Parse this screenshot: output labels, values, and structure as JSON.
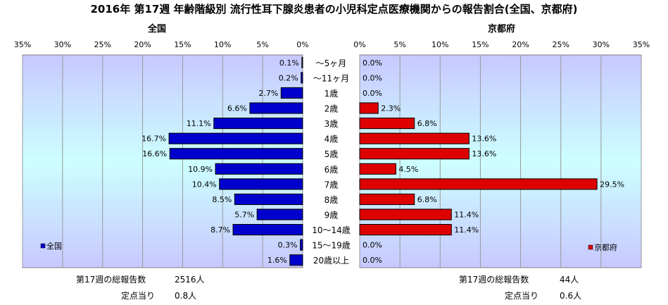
{
  "title": "2016年 第17週 年齢階級別 流行性耳下腺炎患者の小児科定点医療機関からの報告割合(全国、京都府)",
  "colors": {
    "national": "#0000cc",
    "kyoto": "#dd0000",
    "plot_gradient_top": "#c8c8ff",
    "plot_gradient_mid": "#ccffff",
    "plot_gradient_bottom": "#c8c8ff",
    "grid": "#999999"
  },
  "chart_data": [
    {
      "type": "bar",
      "orientation": "horizontal",
      "direction": "right-to-left",
      "title": "全国",
      "series": [
        {
          "name": "全国",
          "values": [
            0.1,
            0.2,
            2.7,
            6.6,
            11.1,
            16.7,
            16.6,
            10.9,
            10.4,
            8.5,
            5.7,
            8.7,
            0.3,
            1.6
          ]
        }
      ],
      "value_labels": [
        "0.1%",
        "0.2%",
        "2.7%",
        "6.6%",
        "11.1%",
        "16.7%",
        "16.6%",
        "10.9%",
        "10.4%",
        "8.5%",
        "5.7%",
        "8.7%",
        "0.3%",
        "1.6%"
      ],
      "xlim": [
        0,
        35
      ],
      "x_ticks": [
        "35%",
        "30%",
        "25%",
        "20%",
        "15%",
        "10%",
        "5%",
        "0%"
      ],
      "grid": true,
      "legend_position": "bottom-left"
    },
    {
      "type": "bar",
      "orientation": "horizontal",
      "direction": "left-to-right",
      "title": "京都府",
      "series": [
        {
          "name": "京都府",
          "values": [
            0.0,
            0.0,
            0.0,
            2.3,
            6.8,
            13.6,
            13.6,
            4.5,
            29.5,
            6.8,
            11.4,
            11.4,
            0.0,
            0.0
          ]
        }
      ],
      "value_labels": [
        "0.0%",
        "0.0%",
        "0.0%",
        "2.3%",
        "6.8%",
        "13.6%",
        "13.6%",
        "4.5%",
        "29.5%",
        "6.8%",
        "11.4%",
        "11.4%",
        "0.0%",
        "0.0%"
      ],
      "xlim": [
        0,
        35
      ],
      "x_ticks": [
        "0%",
        "5%",
        "10%",
        "15%",
        "20%",
        "25%",
        "30%",
        "35%"
      ],
      "grid": true,
      "legend_position": "bottom-right"
    }
  ],
  "categories": [
    "～5ヶ月",
    "～11ヶ月",
    "1歳",
    "2歳",
    "3歳",
    "4歳",
    "5歳",
    "6歳",
    "7歳",
    "8歳",
    "9歳",
    "10～14歳",
    "15～19歳",
    "20歳以上"
  ],
  "summary": {
    "national": {
      "total_label": "第17週の総報告数",
      "total_value": "2516人",
      "per_site_label": "定点当り",
      "per_site_value": "0.8人"
    },
    "kyoto": {
      "total_label": "第17週の総報告数",
      "total_value": "44人",
      "per_site_label": "定点当り",
      "per_site_value": "0.6人"
    }
  }
}
